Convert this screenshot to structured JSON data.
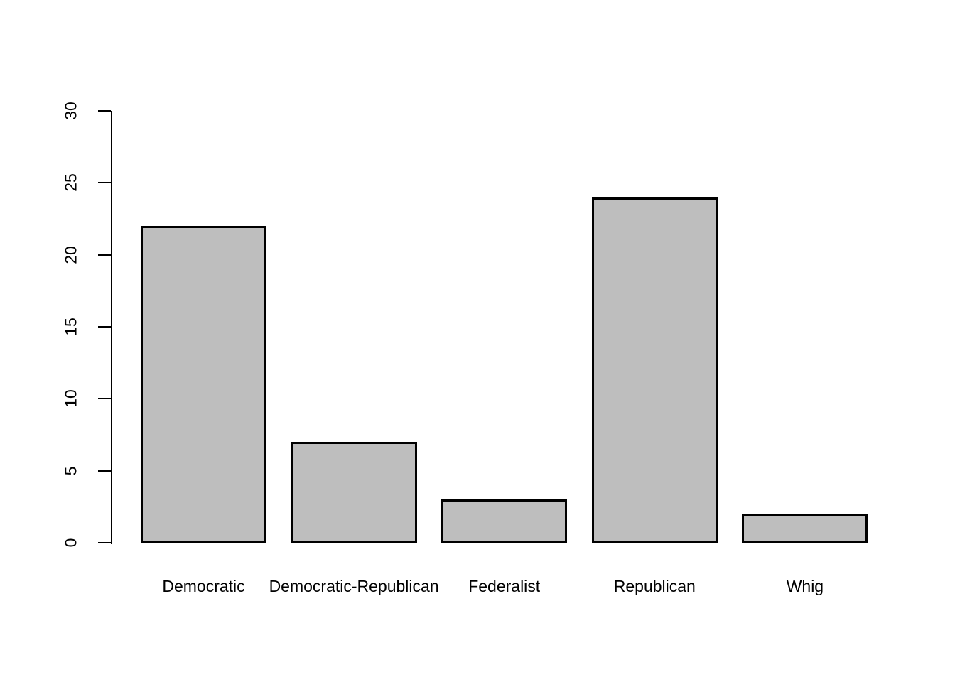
{
  "chart_data": {
    "type": "bar",
    "categories": [
      "Democratic",
      "Democratic-Republican",
      "Federalist",
      "Republican",
      "Whig"
    ],
    "values": [
      22,
      7,
      3,
      24,
      2
    ],
    "title": "",
    "xlabel": "",
    "ylabel": "",
    "ylim": [
      0,
      30
    ],
    "yticks": [
      0,
      5,
      10,
      15,
      20,
      25,
      30
    ],
    "grid": false,
    "legend": null,
    "bar_fill": "#BEBEBE",
    "bar_border": "#000000",
    "axis_color": "#000000",
    "background": "#FFFFFF"
  }
}
